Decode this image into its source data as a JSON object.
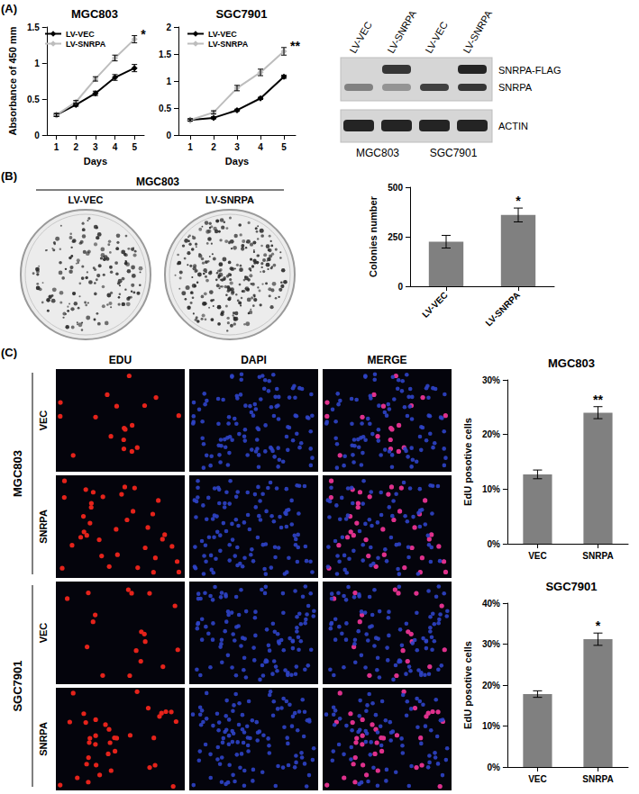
{
  "panel_labels": [
    "(A)",
    "(B)",
    "(C)"
  ],
  "chart_data": [
    {
      "type": "line",
      "title": "MGC803",
      "x_label": "Days",
      "y_label": "Absorbance of 450 mm",
      "categories": [
        "1",
        "2",
        "3",
        "4",
        "5"
      ],
      "series": [
        {
          "name": "LV-VEC",
          "color": "#000000",
          "marker": "diamond",
          "values": [
            0.28,
            0.42,
            0.58,
            0.8,
            0.93
          ],
          "errors": [
            0.02,
            0.02,
            0.03,
            0.04,
            0.05
          ]
        },
        {
          "name": "LV-SNRPA",
          "color": "#bdbdbd",
          "marker": "diamond",
          "values": [
            0.28,
            0.46,
            0.78,
            1.07,
            1.33
          ],
          "errors": [
            0.02,
            0.02,
            0.03,
            0.04,
            0.05
          ]
        }
      ],
      "ylim": [
        0,
        1.5
      ],
      "yticks": [
        0,
        0.5,
        1,
        1.5
      ],
      "grid": false,
      "legend": "upper left",
      "annotations": [
        {
          "text": "*",
          "series": "LV-SNRPA",
          "category": "5"
        }
      ]
    },
    {
      "type": "line",
      "title": "SGC7901",
      "x_label": "Days",
      "categories": [
        "1",
        "2",
        "3",
        "4",
        "5"
      ],
      "series": [
        {
          "name": "LV-VEC",
          "color": "#000000",
          "marker": "diamond",
          "values": [
            0.28,
            0.32,
            0.46,
            0.68,
            1.08
          ],
          "errors": [
            0.02,
            0.02,
            0.02,
            0.02,
            0.03
          ]
        },
        {
          "name": "LV-SNRPA",
          "color": "#bdbdbd",
          "marker": "diamond",
          "values": [
            0.28,
            0.42,
            0.87,
            1.16,
            1.55
          ],
          "errors": [
            0.02,
            0.03,
            0.05,
            0.06,
            0.07
          ]
        }
      ],
      "ylim": [
        0,
        2
      ],
      "yticks": [
        0,
        0.5,
        1,
        1.5,
        2
      ],
      "grid": false,
      "legend": "upper left",
      "annotations": [
        {
          "text": "**",
          "series": "LV-SNRPA",
          "category": "5"
        }
      ]
    },
    {
      "type": "bar",
      "y_label": "Colonies number",
      "categories": [
        "LV-VEC",
        "LV-SNRPA"
      ],
      "values": [
        225,
        360
      ],
      "errors": [
        32,
        35
      ],
      "color": "#808080",
      "ylim": [
        0,
        500
      ],
      "yticks": [
        0,
        250,
        500
      ],
      "grid": false,
      "annotations": [
        {
          "text": "*",
          "category": "LV-SNRPA"
        }
      ]
    },
    {
      "type": "bar",
      "title": "MGC803",
      "y_label": "EdU posotive cells",
      "categories": [
        "VEC",
        "SNRPA"
      ],
      "values": [
        12.7,
        24.0
      ],
      "errors": [
        0.8,
        1.1
      ],
      "color": "#808080",
      "ylim": [
        0,
        30
      ],
      "yticks": [
        {
          "value": 0,
          "label": "0%"
        },
        {
          "value": 10,
          "label": "10%"
        },
        {
          "value": 20,
          "label": "20%"
        },
        {
          "value": 30,
          "label": "30%"
        }
      ],
      "grid": false,
      "annotations": [
        {
          "text": "**",
          "category": "SNRPA"
        }
      ]
    },
    {
      "type": "bar",
      "title": "SGC7901",
      "y_label": "EdU posotive cells",
      "categories": [
        "VEC",
        "SNRPA"
      ],
      "values": [
        17.8,
        31.2
      ],
      "errors": [
        0.8,
        1.5
      ],
      "color": "#808080",
      "ylim": [
        0,
        40
      ],
      "yticks": [
        {
          "value": 0,
          "label": "0%"
        },
        {
          "value": 10,
          "label": "10%"
        },
        {
          "value": 20,
          "label": "20%"
        },
        {
          "value": 30,
          "label": "30%"
        },
        {
          "value": 40,
          "label": "40%"
        }
      ],
      "grid": false,
      "annotations": [
        {
          "text": "*",
          "category": "SNRPA"
        }
      ]
    }
  ],
  "blot": {
    "lanes": [
      "LV-VEC",
      "LV-SNRPA",
      "LV-VEC",
      "LV-SNRPA"
    ],
    "bands": [
      "SNRPA-FLAG",
      "SNRPA",
      "ACTIN"
    ],
    "cell_lines": [
      "MGC803",
      "SGC7901"
    ]
  },
  "plates": {
    "title": "MGC803",
    "labels": [
      "LV-VEC",
      "LV-SNRPA"
    ]
  },
  "micrographs": {
    "columns": [
      "EDU",
      "DAPI",
      "MERGE"
    ],
    "groups": [
      {
        "name": "MGC803",
        "rows": [
          "VEC",
          "SNRPA"
        ]
      },
      {
        "name": "SGC7901",
        "rows": [
          "VEC",
          "SNRPA"
        ]
      }
    ]
  }
}
